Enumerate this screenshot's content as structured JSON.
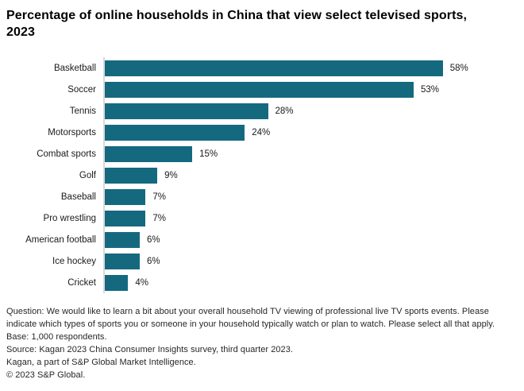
{
  "title": "Percentage of online households in China that view select televised sports, 2023",
  "chart_data": {
    "type": "bar",
    "orientation": "horizontal",
    "title": "Percentage of online households in China that view select televised sports, 2023",
    "categories": [
      "Basketball",
      "Soccer",
      "Tennis",
      "Motorsports",
      "Combat sports",
      "Golf",
      "Baseball",
      "Pro wrestling",
      "American football",
      "Ice hockey",
      "Cricket"
    ],
    "values": [
      58,
      53,
      28,
      24,
      15,
      9,
      7,
      7,
      6,
      6,
      4
    ],
    "value_labels": [
      "58%",
      "53%",
      "28%",
      "24%",
      "15%",
      "9%",
      "7%",
      "7%",
      "6%",
      "6%",
      "4%"
    ],
    "value_suffix": "%",
    "xlabel": "",
    "ylabel": "",
    "xlim": [
      0,
      70
    ],
    "grid": false,
    "legend": false,
    "bar_color": "#15697f",
    "axis_color": "#d9d9d9"
  },
  "footnotes": {
    "question": "Question: We would like to learn a bit about your overall household TV viewing of professional live TV sports events. Please indicate which types of sports you or someone in your household typically watch or plan to watch. Please select all that apply.",
    "base": "Base: 1,000 respondents.",
    "source": "Source:  Kagan 2023 China Consumer Insights survey, third quarter 2023.",
    "attribution": "Kagan, a part of S&P Global Market Intelligence.",
    "copyright": "© 2023 S&P Global."
  }
}
